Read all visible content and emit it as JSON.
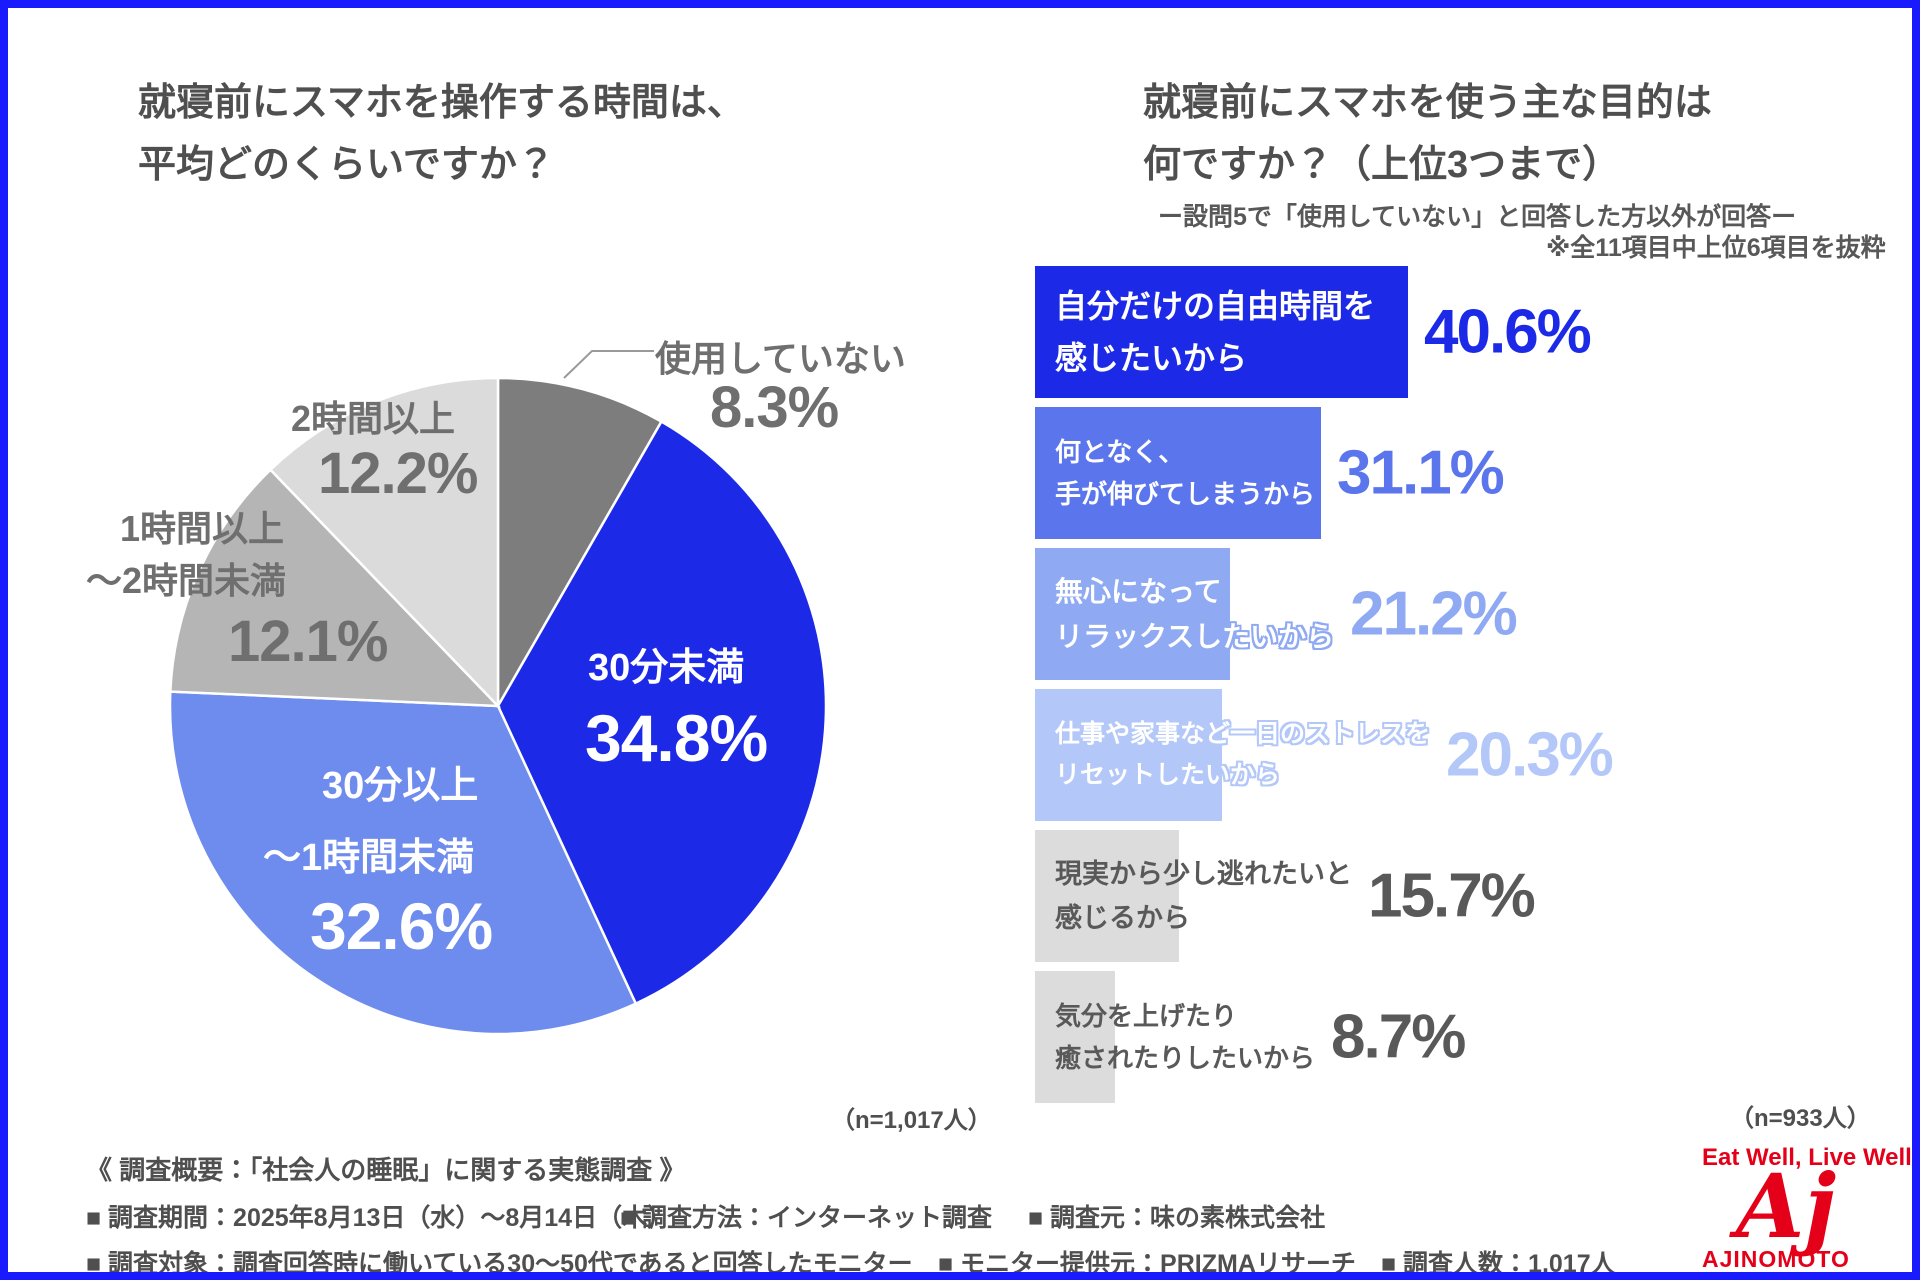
{
  "page": {
    "border_color": "#1a1aff",
    "background": "#ffffff"
  },
  "left_panel": {
    "title_line1": "就寝前にスマホを操作する時間は、",
    "title_line2": "平均どのくらいですか？",
    "sample_size": "（n=1,017人）"
  },
  "right_panel": {
    "title_line1": "就寝前にスマホを使う主な目的は",
    "title_line2": "何ですか？（上位3つまで）",
    "note1": "ー設問5で「使用していない」と回答した方以外が回答ー",
    "note2": "※全11項目中上位6項目を抜粋",
    "sample_size": "（n=933人）"
  },
  "chart_data": [
    {
      "type": "pie",
      "title": "就寝前にスマホを操作する時間は、平均どのくらいですか？",
      "n_label": "（n=1,017人）",
      "start_angle_deg": 0,
      "direction": "clockwise",
      "segments": [
        {
          "label": "使用していない",
          "label_lines": [
            "使用していない"
          ],
          "value": 8.3,
          "color": "#7d7d7d",
          "label_placement": "outside-leader"
        },
        {
          "label": "30分未満",
          "label_lines": [
            "30分未満"
          ],
          "value": 34.8,
          "color": "#1c2ae8",
          "label_color": "#ffffff"
        },
        {
          "label": "30分以上〜1時間未満",
          "label_lines": [
            "30分以上",
            "〜1時間未満"
          ],
          "value": 32.6,
          "color": "#6e8bee",
          "label_color": "#ffffff"
        },
        {
          "label": "1時間以上〜2時間未満",
          "label_lines": [
            "1時間以上",
            "〜2時間未満"
          ],
          "value": 12.1,
          "color": "#b5b5b5"
        },
        {
          "label": "2時間以上",
          "label_lines": [
            "2時間以上"
          ],
          "value": 12.2,
          "color": "#dbdbdb"
        }
      ]
    },
    {
      "type": "bar",
      "orientation": "horizontal",
      "title": "就寝前にスマホを使う主な目的は何ですか？（上位3つまで）",
      "n_label": "（n=933人）",
      "xlim": [
        0,
        41
      ],
      "items": [
        {
          "label": "自分だけの自由時間を感じたいから",
          "label_lines": [
            "自分だけの自由時間を",
            "感じたいから"
          ],
          "value": 40.6,
          "bar_color": "#1c2ae8",
          "label_color": "#ffffff",
          "outline": false,
          "value_color": "#1c2ae8"
        },
        {
          "label": "何となく、手が伸びてしまうから",
          "label_lines": [
            "何となく、",
            "手が伸びてしまうから"
          ],
          "value": 31.1,
          "bar_color": "#5b76ed",
          "label_color": "#ffffff",
          "outline": false,
          "value_color": "#5b76ed"
        },
        {
          "label": "無心になってリラックスしたいから",
          "label_lines": [
            "無心になって",
            "リラックスしたいから"
          ],
          "value": 21.2,
          "bar_color": "#8faaf2",
          "label_color": "#ffffff",
          "outline": true,
          "value_color": "#8faaf2"
        },
        {
          "label": "仕事や家事など一日のストレスをリセットしたいから",
          "label_lines": [
            "仕事や家事など一日のストレスを",
            "リセットしたいから"
          ],
          "value": 20.3,
          "bar_color": "#b3c8f8",
          "label_color": "#ffffff",
          "outline": true,
          "value_color": "#b3c8f8"
        },
        {
          "label": "現実から少し逃れたいと感じるから",
          "label_lines": [
            "現実から少し逃れたいと",
            "感じるから"
          ],
          "value": 15.7,
          "bar_color": "#dcdcdc",
          "label_color": "#595959",
          "outline": false,
          "value_color": "#595959"
        },
        {
          "label": "気分を上げたり癒されたりしたいから",
          "label_lines": [
            "気分を上げたり",
            "癒されたりしたいから"
          ],
          "value": 8.7,
          "bar_color": "#dcdcdc",
          "label_color": "#595959",
          "outline": false,
          "value_color": "#595959"
        }
      ]
    }
  ],
  "footer": {
    "heading": "《 調査概要：「社会人の睡眠」に関する実態調査 》",
    "row1": [
      "■ 調査期間：2025年8月13日（水）〜8月14日（木）",
      "■ 調査方法：インターネット調査",
      "■ 調査元：味の素株式会社"
    ],
    "row2": [
      "■ 調査対象：調査回答時に働いている30〜50代であると回答したモニター",
      "■ モニター提供元：PRIZMAリサーチ",
      "■ 調査人数：1,017人"
    ]
  },
  "logo": {
    "tagline": "Eat Well, Live Well.",
    "mark": "Aj",
    "brand": "AJINOMOTO",
    "color": "#e50019"
  }
}
